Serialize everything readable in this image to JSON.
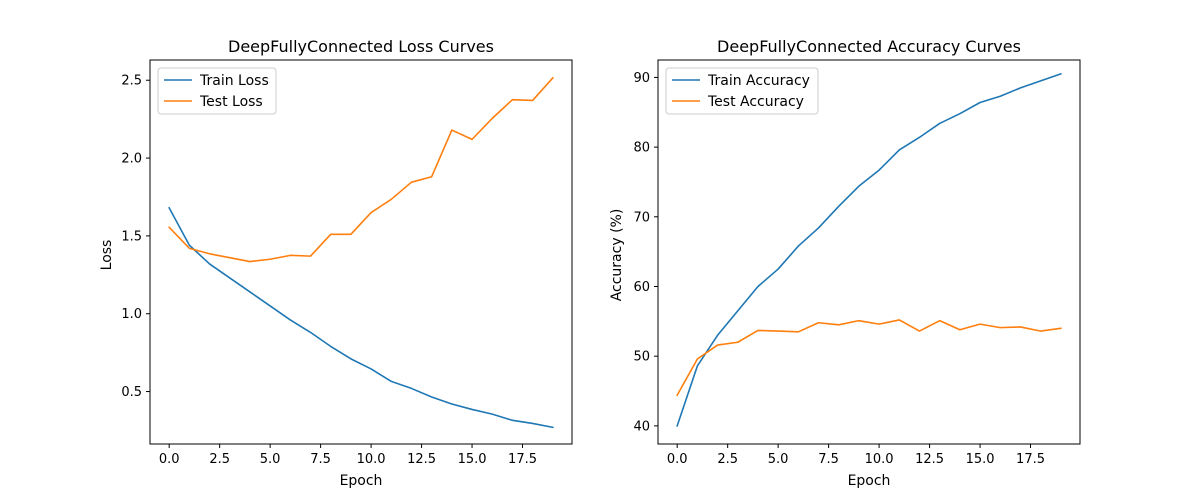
{
  "chart_data": [
    {
      "type": "line",
      "title": "DeepFullyConnected Loss Curves",
      "xlabel": "Epoch",
      "ylabel": "Loss",
      "xlim": [
        -0.95,
        19.95
      ],
      "ylim": [
        0.163,
        2.63
      ],
      "xticks": [
        0.0,
        2.5,
        5.0,
        7.5,
        10.0,
        12.5,
        15.0,
        17.5
      ],
      "xtick_labels": [
        "0.0",
        "2.5",
        "5.0",
        "7.5",
        "10.0",
        "12.5",
        "15.0",
        "17.5"
      ],
      "yticks": [
        0.5,
        1.0,
        1.5,
        2.0,
        2.5
      ],
      "ytick_labels": [
        "0.5",
        "1.0",
        "1.5",
        "2.0",
        "2.5"
      ],
      "legend_position": "upper-left",
      "grid": false,
      "x": [
        0,
        1,
        2,
        3,
        4,
        5,
        6,
        7,
        8,
        9,
        10,
        11,
        12,
        13,
        14,
        15,
        16,
        17,
        18,
        19
      ],
      "series": [
        {
          "name": "Train Loss",
          "color": "#1f77b4",
          "values": [
            1.68,
            1.44,
            1.32,
            1.23,
            1.14,
            1.05,
            0.96,
            0.88,
            0.79,
            0.71,
            0.645,
            0.565,
            0.52,
            0.465,
            0.42,
            0.385,
            0.355,
            0.315,
            0.295,
            0.27
          ]
        },
        {
          "name": "Test Loss",
          "color": "#ff7f0e",
          "values": [
            1.555,
            1.42,
            1.385,
            1.36,
            1.335,
            1.35,
            1.375,
            1.37,
            1.51,
            1.51,
            1.65,
            1.735,
            1.845,
            1.88,
            2.18,
            2.12,
            2.255,
            2.375,
            2.37,
            2.515
          ]
        }
      ]
    },
    {
      "type": "line",
      "title": "DeepFullyConnected Accuracy Curves",
      "xlabel": "Epoch",
      "ylabel": "Accuracy (%)",
      "xlim": [
        -0.95,
        19.95
      ],
      "ylim": [
        37.4,
        92.5
      ],
      "xticks": [
        0.0,
        2.5,
        5.0,
        7.5,
        10.0,
        12.5,
        15.0,
        17.5
      ],
      "xtick_labels": [
        "0.0",
        "2.5",
        "5.0",
        "7.5",
        "10.0",
        "12.5",
        "15.0",
        "17.5"
      ],
      "yticks": [
        40,
        50,
        60,
        70,
        80,
        90
      ],
      "ytick_labels": [
        "40",
        "50",
        "60",
        "70",
        "80",
        "90"
      ],
      "legend_position": "upper-left",
      "grid": false,
      "x": [
        0,
        1,
        2,
        3,
        4,
        5,
        6,
        7,
        8,
        9,
        10,
        11,
        12,
        13,
        14,
        15,
        16,
        17,
        18,
        19
      ],
      "series": [
        {
          "name": "Train Accuracy",
          "color": "#1f77b4",
          "values": [
            40.0,
            48.6,
            53.0,
            56.5,
            60.0,
            62.5,
            65.8,
            68.4,
            71.5,
            74.4,
            76.7,
            79.6,
            81.4,
            83.4,
            84.8,
            86.4,
            87.3,
            88.5,
            89.5,
            90.5
          ]
        },
        {
          "name": "Test Accuracy",
          "color": "#ff7f0e",
          "values": [
            44.4,
            49.6,
            51.6,
            52.0,
            53.7,
            53.6,
            53.5,
            54.8,
            54.5,
            55.1,
            54.6,
            55.2,
            53.6,
            55.1,
            53.8,
            54.6,
            54.1,
            54.2,
            53.6,
            54.0
          ]
        }
      ]
    }
  ]
}
